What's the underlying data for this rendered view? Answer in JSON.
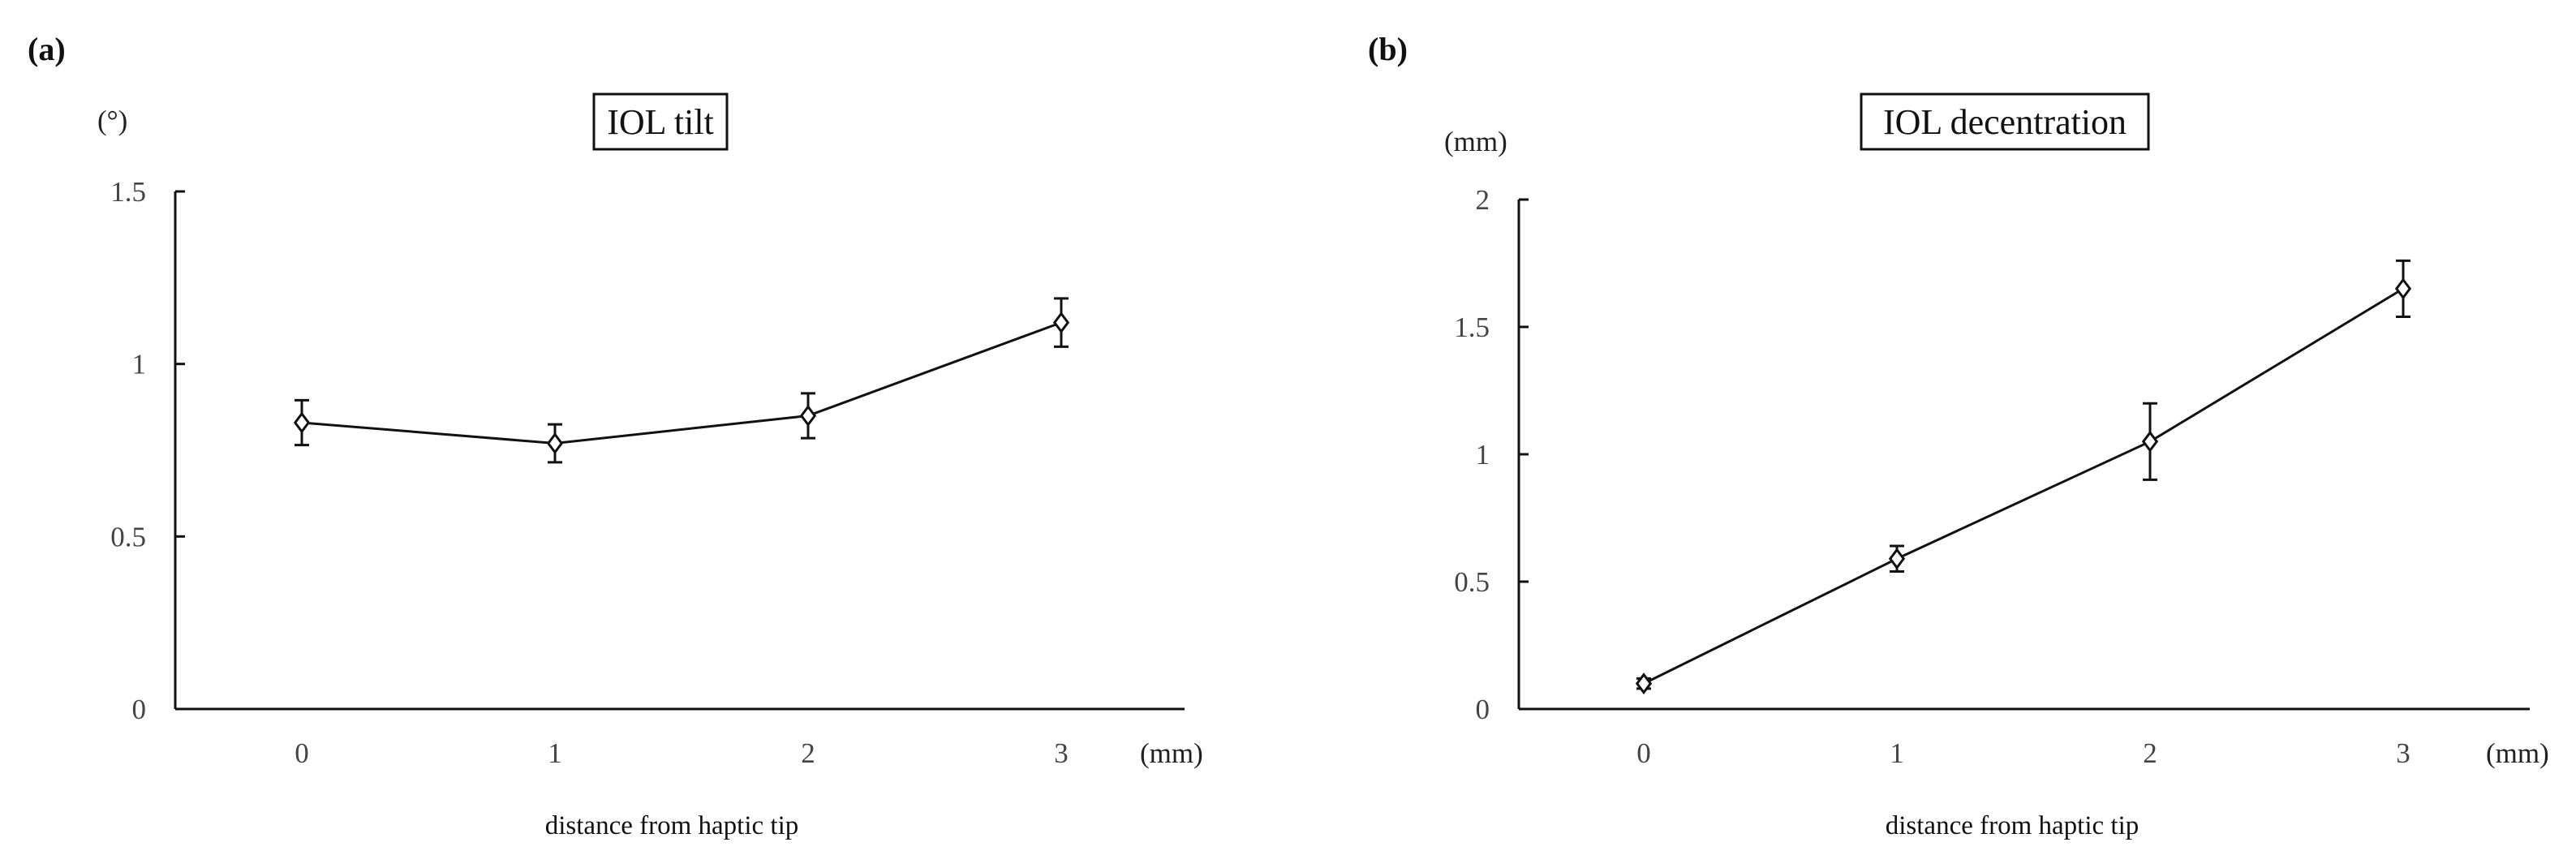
{
  "chart_data": [
    {
      "type": "line",
      "panel_label": "(a)",
      "title": "IOL tilt",
      "ylabel": "(°)",
      "xlabel": "distance from haptic tip",
      "x_unit": "(mm)",
      "categories": [
        "0",
        "1",
        "2",
        "3"
      ],
      "values": [
        0.83,
        0.77,
        0.85,
        1.12
      ],
      "error": [
        0.065,
        0.055,
        0.065,
        0.07
      ],
      "ylim": [
        0,
        1.5
      ],
      "yticks": [
        "0",
        "0.5",
        "1",
        "1.5"
      ],
      "ytick_values": [
        0,
        0.5,
        1,
        1.5
      ],
      "marker": "diamond",
      "grid": false,
      "legend": "none"
    },
    {
      "type": "line",
      "panel_label": "(b)",
      "title": "IOL decentration",
      "ylabel": "(mm)",
      "xlabel": "distance from haptic tip",
      "x_unit": "(mm)",
      "categories": [
        "0",
        "1",
        "2",
        "3"
      ],
      "values": [
        0.1,
        0.59,
        1.05,
        1.65
      ],
      "error": [
        0.02,
        0.05,
        0.15,
        0.11
      ],
      "ylim": [
        0,
        2
      ],
      "yticks": [
        "0",
        "0.5",
        "1",
        "1.5",
        "2"
      ],
      "ytick_values": [
        0,
        0.5,
        1,
        1.5,
        2
      ],
      "marker": "diamond",
      "grid": false,
      "legend": "none"
    }
  ]
}
